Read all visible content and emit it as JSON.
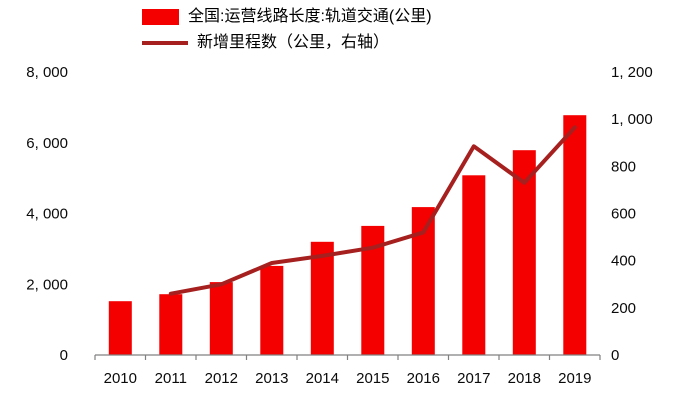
{
  "chart_data": {
    "type": "bar+line",
    "title": "",
    "categories": [
      "2010",
      "2011",
      "2012",
      "2013",
      "2014",
      "2015",
      "2016",
      "2017",
      "2018",
      "2019"
    ],
    "series": [
      {
        "name": "全国:运营线路长度:轨道交通(公里)",
        "type": "bar",
        "axis": "left",
        "color": "#f40000",
        "values": [
          1520,
          1720,
          2060,
          2520,
          3200,
          3650,
          4180,
          5080,
          5790,
          6780
        ]
      },
      {
        "name": "新增里程数（公里，右轴）",
        "type": "line",
        "axis": "right",
        "color": "#a5201f",
        "values": [
          null,
          260,
          300,
          390,
          420,
          455,
          520,
          885,
          730,
          965
        ]
      }
    ],
    "left_axis": {
      "min": 0,
      "max": 8000,
      "ticks": [
        0,
        2000,
        4000,
        6000,
        8000
      ],
      "tick_labels": [
        "0",
        "2, 000",
        "4, 000",
        "6, 000",
        "8, 000"
      ]
    },
    "right_axis": {
      "min": 0,
      "max": 1200,
      "ticks": [
        0,
        200,
        400,
        600,
        800,
        1000,
        1200
      ],
      "tick_labels": [
        "0",
        "200",
        "400",
        "600",
        "800",
        "1, 000",
        "1, 200"
      ]
    },
    "grid": false,
    "legend_position": "top",
    "axis_line_color": "#808080"
  }
}
